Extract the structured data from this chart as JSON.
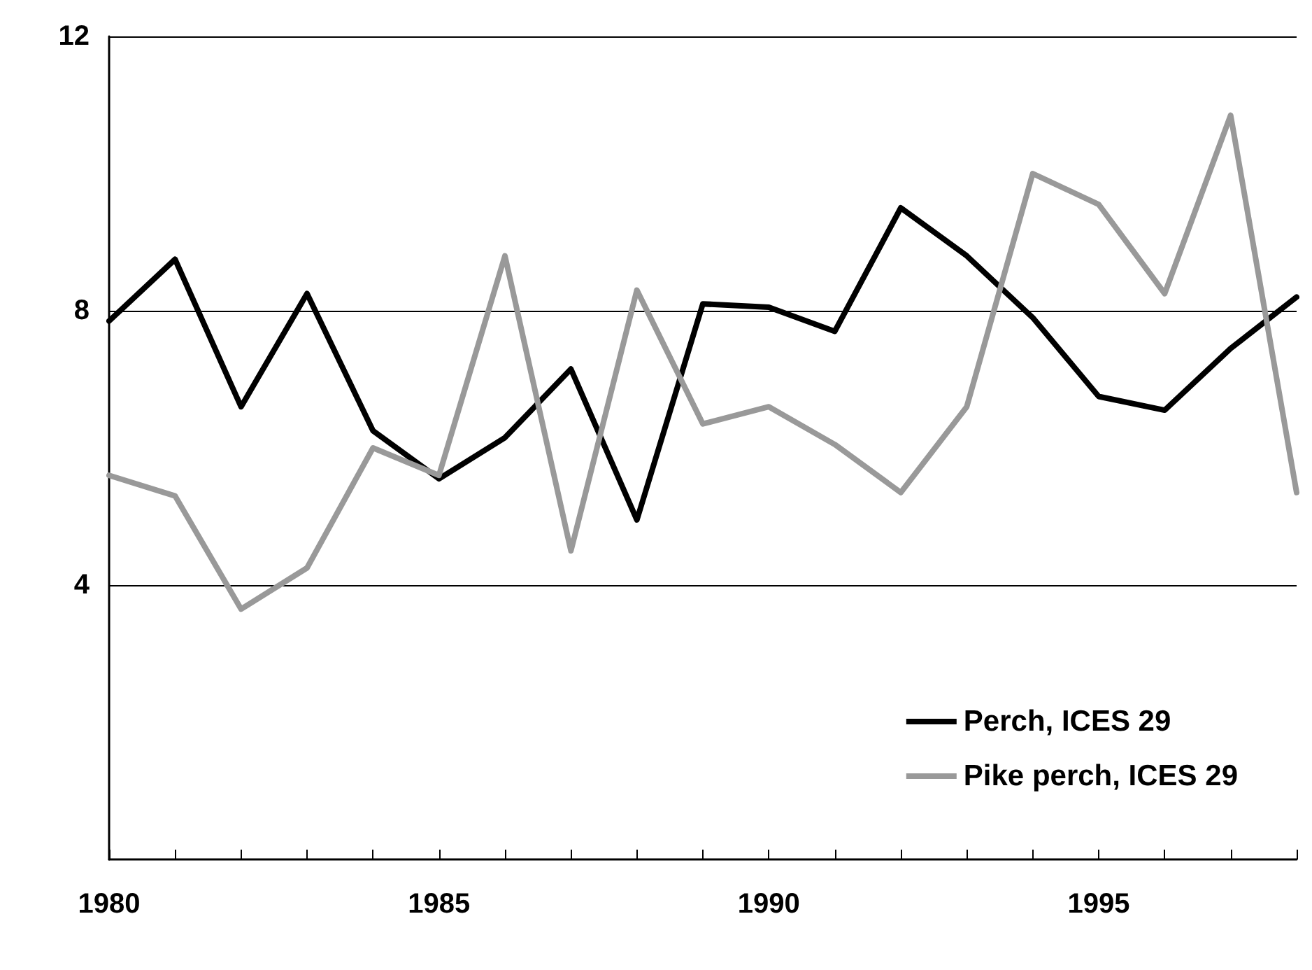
{
  "chart_data": {
    "type": "line",
    "x": [
      1980,
      1981,
      1982,
      1983,
      1984,
      1985,
      1986,
      1987,
      1988,
      1989,
      1990,
      1991,
      1992,
      1993,
      1994,
      1995,
      1996,
      1997,
      1998
    ],
    "series": [
      {
        "name": "Perch, ICES 29",
        "color": "#000000",
        "values": [
          7.85,
          8.75,
          6.6,
          8.25,
          6.25,
          5.55,
          6.15,
          7.15,
          4.95,
          8.1,
          8.05,
          7.7,
          9.5,
          8.8,
          7.9,
          6.75,
          6.55,
          7.45,
          8.2
        ]
      },
      {
        "name": "Pike perch, ICES 29",
        "color": "#999999",
        "values": [
          5.6,
          5.3,
          3.65,
          4.25,
          6.0,
          5.6,
          8.8,
          4.5,
          8.3,
          6.35,
          6.6,
          6.05,
          5.35,
          6.6,
          10.0,
          9.55,
          8.25,
          10.85,
          5.35
        ]
      }
    ],
    "xlim": [
      1980,
      1998
    ],
    "xticks": [
      1980,
      {
        "value": 1981,
        "label": null
      },
      {
        "value": 1982,
        "label": null
      },
      {
        "value": 1983,
        "label": null
      },
      {
        "value": 1984,
        "label": null
      },
      1985,
      {
        "value": 1986,
        "label": null
      },
      {
        "value": 1987,
        "label": null
      },
      {
        "value": 1988,
        "label": null
      },
      {
        "value": 1989,
        "label": null
      },
      1990,
      {
        "value": 1991,
        "label": null
      },
      {
        "value": 1992,
        "label": null
      },
      {
        "value": 1993,
        "label": null
      },
      {
        "value": 1994,
        "label": null
      },
      1995,
      {
        "value": 1996,
        "label": null
      },
      {
        "value": 1997,
        "label": null
      },
      {
        "value": 1998,
        "label": null
      }
    ],
    "ylim": [
      0,
      12
    ],
    "yticks": [
      4,
      8,
      12
    ],
    "grid": "y",
    "legend": "bottom right",
    "marker": "none",
    "line_style": "solid"
  }
}
